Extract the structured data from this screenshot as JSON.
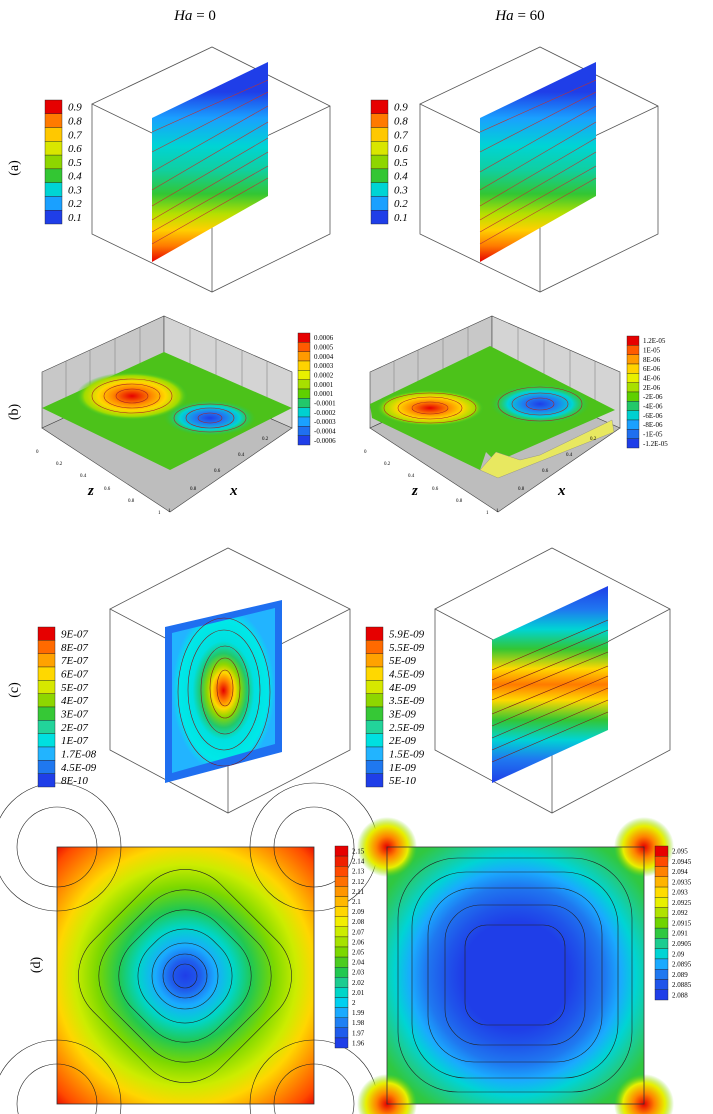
{
  "header": {
    "ha": "Ha",
    "eq": " = ",
    "left": "0",
    "right": "60"
  },
  "row_labels": [
    "(a)",
    "(b)",
    "(c)",
    "(d)"
  ],
  "axis_labels": {
    "z": "z",
    "x": "x"
  },
  "axis_ticks": [
    "0",
    "0.2",
    "0.4",
    "0.6",
    "0.8",
    "1"
  ],
  "legends": {
    "a_left": {
      "values": [
        "0.9",
        "0.8",
        "0.7",
        "0.6",
        "0.5",
        "0.4",
        "0.3",
        "0.2",
        "0.1"
      ],
      "colors": [
        "#e60000",
        "#ff7a00",
        "#ffc800",
        "#d9e600",
        "#8ed600",
        "#33c633",
        "#00d4d4",
        "#1aa0ff",
        "#1f3ee8"
      ]
    },
    "a_right": {
      "values": [
        "0.9",
        "0.8",
        "0.7",
        "0.6",
        "0.5",
        "0.4",
        "0.3",
        "0.2",
        "0.1"
      ],
      "colors": [
        "#e60000",
        "#ff7a00",
        "#ffc800",
        "#d9e600",
        "#8ed600",
        "#33c633",
        "#00d4d4",
        "#1aa0ff",
        "#1f3ee8"
      ]
    },
    "b_left": {
      "values": [
        "0.0006",
        "0.0005",
        "0.0004",
        "0.0003",
        "0.0002",
        "0.0001",
        "0.0001",
        "-0.0001",
        "-0.0002",
        "-0.0003",
        "-0.0004",
        "-0.0006"
      ],
      "colors": [
        "#e60000",
        "#ff5a00",
        "#ff9a00",
        "#ffd200",
        "#e8f000",
        "#a8e000",
        "#5fd000",
        "#22c86a",
        "#00d0d0",
        "#1aa0ff",
        "#1f6ff0",
        "#1f3ee8"
      ]
    },
    "b_right": {
      "values": [
        "1.2E-05",
        "1E-05",
        "8E-06",
        "6E-06",
        "4E-06",
        "2E-06",
        "-2E-06",
        "-4E-06",
        "-6E-06",
        "-8E-06",
        "-1E-05",
        "-1.2E-05"
      ],
      "colors": [
        "#e60000",
        "#ff5a00",
        "#ff9a00",
        "#ffd200",
        "#e8f000",
        "#a8e000",
        "#5fd000",
        "#22c86a",
        "#00d0d0",
        "#1aa0ff",
        "#1f6ff0",
        "#1f3ee8"
      ]
    },
    "c_left": {
      "values": [
        "9E-07",
        "8E-07",
        "7E-07",
        "6E-07",
        "5E-07",
        "4E-07",
        "3E-07",
        "2E-07",
        "1E-07",
        "1.7E-08",
        "4.5E-09",
        "8E-10"
      ],
      "colors": [
        "#e60000",
        "#ff6a00",
        "#ffa200",
        "#ffd800",
        "#d6e800",
        "#8ed600",
        "#36c836",
        "#22d49a",
        "#00e0e0",
        "#22b4ff",
        "#1f78f0",
        "#1f3ee8"
      ]
    },
    "c_right": {
      "values": [
        "5.9E-09",
        "5.5E-09",
        "5E-09",
        "4.5E-09",
        "4E-09",
        "3.5E-09",
        "3E-09",
        "2.5E-09",
        "2E-09",
        "1.5E-09",
        "1E-09",
        "5E-10"
      ],
      "colors": [
        "#e60000",
        "#ff6a00",
        "#ffa200",
        "#ffd800",
        "#d6e800",
        "#8ed600",
        "#36c836",
        "#22d49a",
        "#00e0e0",
        "#22b4ff",
        "#1f78f0",
        "#1f3ee8"
      ]
    },
    "d_left": {
      "values": [
        "2.15",
        "2.14",
        "2.13",
        "2.12",
        "2.11",
        "2.1",
        "2.09",
        "2.08",
        "2.07",
        "2.06",
        "2.05",
        "2.04",
        "2.03",
        "2.02",
        "2.01",
        "2",
        "1.99",
        "1.98",
        "1.97",
        "1.96"
      ],
      "colors": [
        "#e60000",
        "#f02000",
        "#ff4a00",
        "#ff7000",
        "#ff9600",
        "#ffb800",
        "#ffd600",
        "#f2ee00",
        "#ccec00",
        "#a6e200",
        "#7cd800",
        "#4ccc20",
        "#22c850",
        "#1ccc90",
        "#00d6c8",
        "#00d0f0",
        "#1aaaff",
        "#1f80f4",
        "#1f5cec",
        "#1f3ee8"
      ]
    },
    "d_right": {
      "values": [
        "2.095",
        "2.0945",
        "2.094",
        "2.0935",
        "2.093",
        "2.0925",
        "2.092",
        "2.0915",
        "2.091",
        "2.0905",
        "2.09",
        "2.0895",
        "2.089",
        "2.0885",
        "2.088"
      ],
      "colors": [
        "#e60000",
        "#ff4a00",
        "#ff8200",
        "#ffb400",
        "#ffdc00",
        "#e8f000",
        "#b0e200",
        "#70d400",
        "#30c840",
        "#1ccc90",
        "#00d4d4",
        "#1aaaff",
        "#1f78f0",
        "#1f54ea",
        "#1f3ee8"
      ]
    }
  }
}
